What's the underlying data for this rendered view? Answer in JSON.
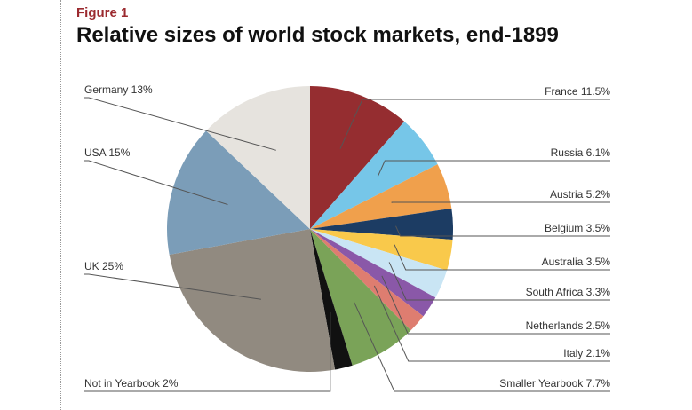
{
  "figure_label": "Figure 1",
  "title": "Relative sizes of world stock markets, end-1899",
  "chart_data": {
    "type": "pie",
    "title": "Relative sizes of world stock markets, end-1899",
    "slices": [
      {
        "name": "France",
        "value": 11.5,
        "label": "France 11.5%",
        "color": "#952d30",
        "side": "right"
      },
      {
        "name": "Russia",
        "value": 6.1,
        "label": "Russia 6.1%",
        "color": "#76c6e8",
        "side": "right"
      },
      {
        "name": "Austria",
        "value": 5.2,
        "label": "Austria 5.2%",
        "color": "#f0a04c",
        "side": "right"
      },
      {
        "name": "Belgium",
        "value": 3.5,
        "label": "Belgium 3.5%",
        "color": "#1c3c63",
        "side": "right"
      },
      {
        "name": "Australia",
        "value": 3.5,
        "label": "Australia 3.5%",
        "color": "#f9c94b",
        "side": "right"
      },
      {
        "name": "South Africa",
        "value": 3.3,
        "label": "South Africa 3.3%",
        "color": "#c9e5f4",
        "side": "right"
      },
      {
        "name": "Netherlands",
        "value": 2.5,
        "label": "Netherlands 2.5%",
        "color": "#8a58a8",
        "side": "right"
      },
      {
        "name": "Italy",
        "value": 2.1,
        "label": "Italy 2.1%",
        "color": "#de7d70",
        "side": "right"
      },
      {
        "name": "Smaller Yearbook",
        "value": 7.7,
        "label": "Smaller Yearbook 7.7%",
        "color": "#7aa358",
        "side": "right"
      },
      {
        "name": "Not in Yearbook",
        "value": 2,
        "label": "Not in Yearbook 2%",
        "color": "#111111",
        "side": "left"
      },
      {
        "name": "UK",
        "value": 25,
        "label": "UK 25%",
        "color": "#918a80",
        "side": "left"
      },
      {
        "name": "USA",
        "value": 15,
        "label": "USA 15%",
        "color": "#7b9db8",
        "side": "left"
      },
      {
        "name": "Germany",
        "value": 13,
        "label": "Germany 13%",
        "color": "#e6e3de",
        "side": "left"
      }
    ]
  }
}
